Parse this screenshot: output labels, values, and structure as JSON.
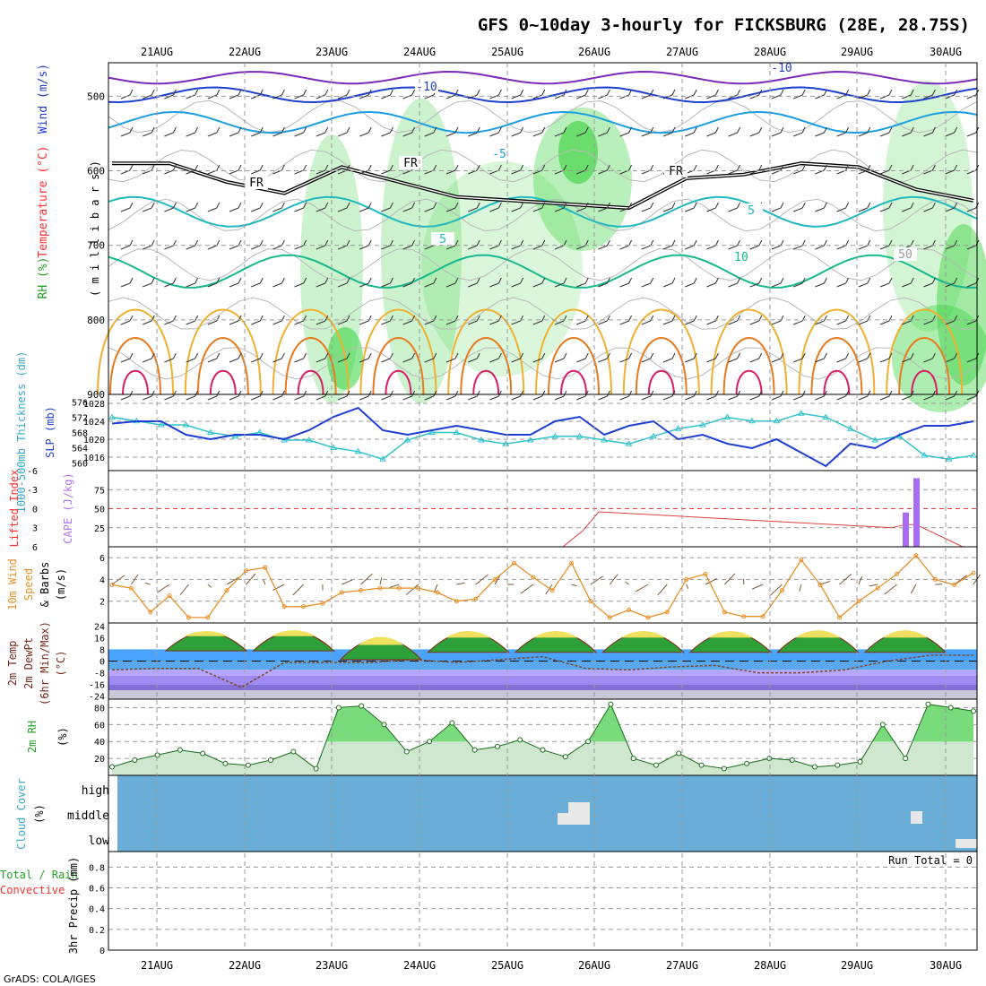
{
  "title": "GFS 0~10day 3-hourly for FICKSBURG (28E, 28.75S)",
  "credit": "GrADS: COLA/IGES",
  "colors": {
    "frame": "#000000",
    "grid": "#9a9a9a",
    "blue": "#1f3fd0",
    "cyan": "#33c3cc",
    "orange": "#e8902a",
    "purple": "#a86cf0",
    "red": "#e04040",
    "green": "#2e9e2e",
    "rh_green": "#35d13a",
    "cloud_blue": "#6aaed8",
    "cloud_white": "#e8e8e8",
    "temp_blue": "#4aa3ff",
    "temp_purple": "#8a78e8",
    "label_green": "#22a022",
    "label_cyan": "#3aa8c8",
    "label_purple": "#b074f0",
    "label_red": "#ff3030",
    "label_orange": "#e8902a"
  },
  "days": [
    "21AUG",
    "22AUG",
    "23AUG",
    "24AUG",
    "25AUG",
    "26AUG",
    "27AUG",
    "28AUG",
    "29AUG",
    "30AUG"
  ],
  "run_total": "Run Total = 0",
  "chart_data": [
    {
      "panel": "upper_air",
      "type": "heatmap",
      "ylabel_parts": [
        "RH (%)",
        "Temperature (°C)",
        "Wind (m/s)"
      ],
      "ylabel_units": "( m i l l i b a r s )",
      "yticks": [
        500,
        600,
        700,
        800,
        900
      ],
      "ylim": [
        455,
        900
      ],
      "contour_labels": [
        "-10",
        "-10",
        "-5",
        "FR",
        "FR",
        "FR",
        "5",
        "5",
        "10",
        "50"
      ],
      "freezing_level_mb": [
        590,
        590,
        615,
        630,
        595,
        615,
        635,
        640,
        645,
        650,
        610,
        605,
        590,
        595,
        625,
        640
      ]
    },
    {
      "panel": "thickness_slp",
      "type": "line",
      "ylabel_left": "1000-500mb Thickness (dm)",
      "ylabel_right": "SLP (mb)",
      "thickness_ticks": [
        560,
        564,
        568,
        572,
        576
      ],
      "slp_ticks": [
        1016,
        1020,
        1024,
        1028
      ],
      "thickness_dm": [
        572,
        571,
        570,
        570,
        568,
        567,
        568,
        566,
        566,
        564,
        563,
        561,
        566,
        568,
        568,
        566,
        565,
        566,
        567,
        567,
        566,
        565,
        567,
        569,
        570,
        572,
        571,
        571,
        573,
        572,
        569,
        566,
        567,
        562,
        561,
        562
      ],
      "slp_mb": [
        1023.5,
        1024,
        1024,
        1021,
        1020,
        1021,
        1021,
        1020,
        1022,
        1025,
        1027,
        1022,
        1021,
        1022,
        1023,
        1022,
        1021,
        1021,
        1024,
        1025,
        1021,
        1023,
        1024,
        1020,
        1021,
        1019,
        1018,
        1020,
        1017,
        1014,
        1019,
        1018,
        1021,
        1023,
        1023,
        1024
      ]
    },
    {
      "panel": "stability",
      "type": "bar",
      "ylabel_left": "Lifted Index",
      "ylabel_right": "CAPE (J/kg)",
      "li_ticks": [
        "-6",
        "-3",
        "0",
        "3",
        "6"
      ],
      "cape_ticks": [
        25,
        50,
        75
      ],
      "lifted_index": [
        6,
        6,
        3.5,
        0.5,
        3,
        2.5,
        2.5,
        6
      ],
      "cape": [
        0,
        0,
        0,
        0,
        0,
        45,
        90,
        0
      ]
    },
    {
      "panel": "wind10m",
      "type": "line",
      "ylabel": [
        "10m Wind",
        "Speed",
        "& Barbs",
        "(m/s)"
      ],
      "yticks": [
        2,
        4,
        6
      ],
      "ylim": [
        0,
        7
      ],
      "speed_ms": [
        3.5,
        3.2,
        1,
        2.5,
        0.5,
        0.5,
        3,
        4.8,
        5.1,
        1.5,
        1.5,
        1.8,
        2.8,
        3,
        3.2,
        3.2,
        3.2,
        2.8,
        2,
        2.2,
        4,
        5.5,
        4.2,
        3,
        5.5,
        2,
        0.5,
        1.2,
        0.5,
        1,
        4,
        4.5,
        1,
        0.6,
        0.6,
        3,
        5.8,
        3.5,
        0.5,
        2,
        3.2,
        4.5,
        6.2,
        4,
        3.5,
        4.6
      ]
    },
    {
      "panel": "temperature",
      "type": "area",
      "ylabel": [
        "2m Temp",
        "2m DewPt",
        "(6hr Min/Max)",
        "(°C)"
      ],
      "yticks": [
        "24",
        "16",
        "8",
        "0",
        "-8",
        "-16",
        "-24"
      ],
      "ylim": [
        -26,
        26
      ],
      "temp_max_c": [
        22,
        23,
        20,
        23,
        23,
        23,
        23,
        24,
        24
      ],
      "temp_min_c": [
        7,
        7,
        1,
        6,
        6,
        6,
        6,
        6,
        6
      ],
      "dewpoint_c": [
        -6,
        -5,
        -5,
        -18,
        -1,
        -1,
        -1,
        1,
        -1,
        1,
        3,
        -5,
        -6,
        -4,
        -3,
        -8,
        -8,
        -6,
        0,
        4,
        4
      ]
    },
    {
      "panel": "rh2m",
      "type": "area",
      "ylabel": [
        "2m RH",
        "(%)"
      ],
      "yticks": [
        20,
        40,
        60,
        80
      ],
      "ylim": [
        0,
        90
      ],
      "rh_pct": [
        10,
        18,
        24,
        30,
        26,
        14,
        12,
        18,
        28,
        8,
        80,
        82,
        60,
        28,
        40,
        62,
        30,
        34,
        42,
        30,
        22,
        40,
        84,
        20,
        12,
        26,
        12,
        8,
        14,
        20,
        18,
        10,
        12,
        16,
        60,
        20,
        84,
        80,
        76
      ]
    },
    {
      "panel": "cloud",
      "type": "heatmap",
      "ylabel": [
        "Cloud Cover",
        "(%)"
      ],
      "levels": [
        "high",
        "middle",
        "low"
      ]
    },
    {
      "panel": "precip",
      "type": "bar",
      "ylabel_left": [
        "Total / Rain",
        "Convective"
      ],
      "ylabel_right": "3hr Precip (mm)",
      "yticks": [
        "0",
        "0.2",
        "0.4",
        "0.6",
        "0.8"
      ],
      "ylim": [
        0,
        0.95
      ],
      "precip_mm": [
        0,
        0,
        0,
        0,
        0,
        0,
        0,
        0,
        0,
        0
      ]
    }
  ]
}
